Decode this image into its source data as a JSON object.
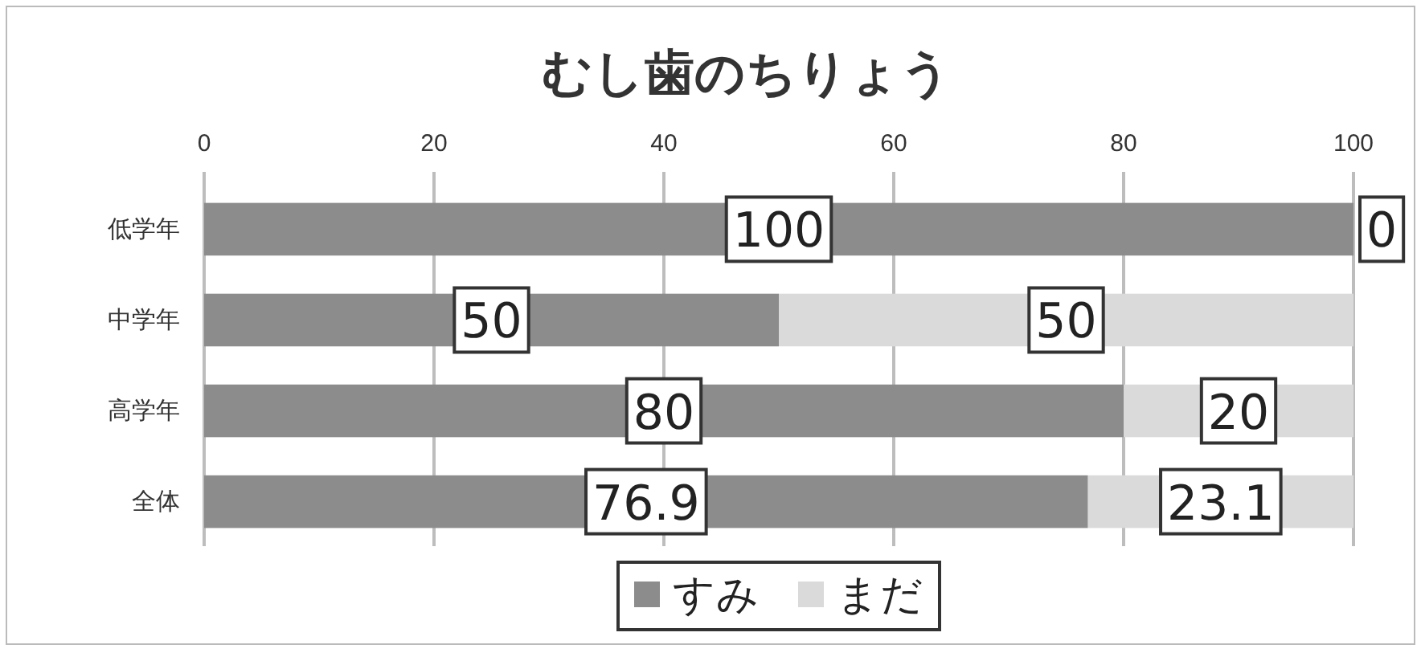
{
  "chart_data": {
    "type": "bar",
    "title": "むし歯のちりょう",
    "orientation": "horizontal",
    "stacked": true,
    "categories": [
      "低学年",
      "中学年",
      "高学年",
      "全体"
    ],
    "series": [
      {
        "name": "すみ",
        "color": "#8c8c8c",
        "values": [
          100,
          50,
          80,
          76.9
        ]
      },
      {
        "name": "まだ",
        "color": "#dadada",
        "values": [
          0,
          50,
          20,
          23.1
        ]
      }
    ],
    "xlim": [
      0,
      100
    ],
    "xticks": [
      0,
      20,
      40,
      60,
      80,
      100
    ],
    "grid": "x",
    "legend": "bottom",
    "data_labels": true
  }
}
